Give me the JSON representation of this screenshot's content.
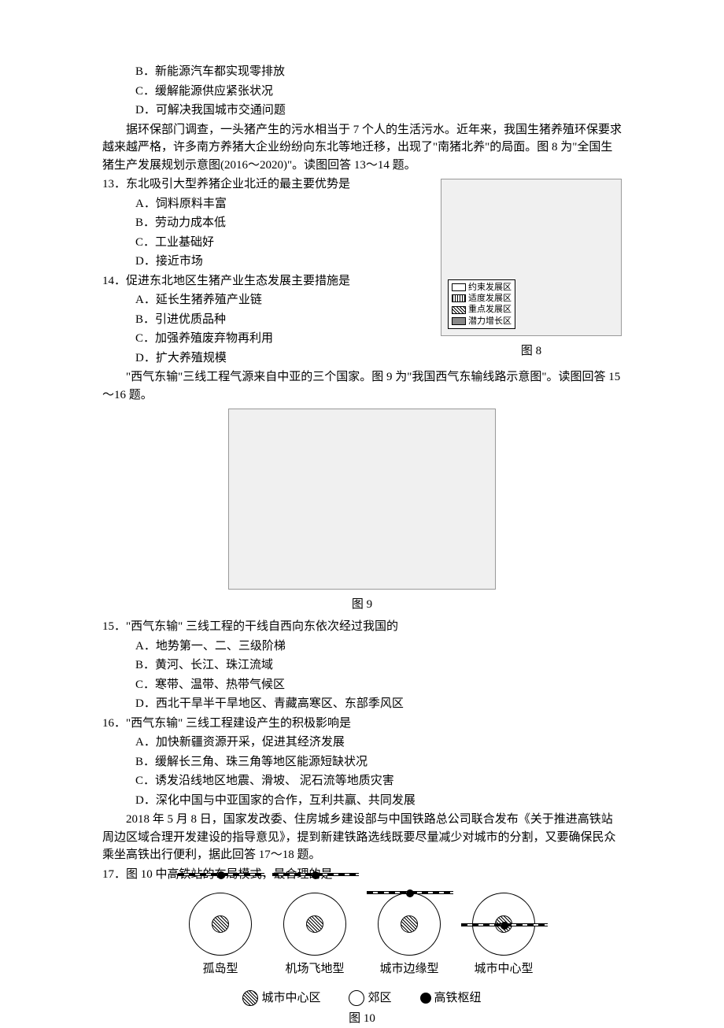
{
  "opts_prev": {
    "B": "B．新能源汽车都实现零排放",
    "C": "C．缓解能源供应紧张状况",
    "D": "D．可解决我国城市交通问题"
  },
  "intro13": "据环保部门调查，一头猪产生的污水相当于 7 个人的生活污水。近年来，我国生猪养殖环保要求越来越严格，许多南方养猪大企业纷纷向东北等地迁移，出现了\"南猪北养\"的局面。图 8 为\"全国生猪生产发展规划示意图(2016～2020)\"。读图回答 13～14 题。",
  "q13": "13．东北吸引大型养猪企业北迁的最主要优势是",
  "q13o": {
    "A": "A．饲料原料丰富",
    "B": "B．劳动力成本低",
    "C": "C．工业基础好",
    "D": "D．接近市场"
  },
  "q14": "14．促进东北地区生猪产业生态发展主要措施是",
  "q14o": {
    "A": "A．延长生猪养殖产业链",
    "B": "B．引进优质品种",
    "C": "C．加强养殖废弃物再利用",
    "D": "D．扩大养殖规模"
  },
  "fig8_caption": "图 8",
  "fig8_legend": {
    "a": "约束发展区",
    "b": "适度发展区",
    "c": "重点发展区",
    "d": "潜力增长区"
  },
  "intro15": "\"西气东输\"三线工程气源来自中亚的三个国家。图 9 为\"我国西气东输线路示意图\"。读图回答 15～16 题。",
  "fig9_caption": "图 9",
  "q15": "15．\"西气东输\" 三线工程的干线自西向东依次经过我国的",
  "q15o": {
    "A": "A．地势第一、二、三级阶梯",
    "B": "B．黄河、长江、珠江流域",
    "C": "C．寒带、温带、热带气候区",
    "D": "D．西北干旱半干旱地区、青藏高寒区、东部季风区"
  },
  "q16": "16．\"西气东输\" 三线工程建设产生的积极影响是",
  "q16o": {
    "A": "A．加快新疆资源开采，促进其经济发展",
    "B": "B．缓解长三角、珠三角等地区能源短缺状况",
    "C": "C．诱发沿线地区地震、滑坡、 泥石流等地质灾害",
    "D": "D．深化中国与中亚国家的合作，互利共赢、共同发展"
  },
  "intro17": "2018 年 5 月 8 日，国家发改委、住房城乡建设部与中国铁路总公司联合发布《关于推进高铁站周边区域合理开发建设的指导意见》，提到新建铁路选线既要尽量减少对城市的分割，又要确保民众乘坐高铁出行便利，据此回答 17～18 题。",
  "q17": "17．图 10 中高铁站的布局模式，最合理的是",
  "fig10": {
    "labels": {
      "a": "孤岛型",
      "b": "机场飞地型",
      "c": "城市边缘型",
      "d": "城市中心型"
    },
    "legend": {
      "center": "城市中心区",
      "suburb": "郊区",
      "hub": "高铁枢纽"
    },
    "caption": "图 10"
  }
}
